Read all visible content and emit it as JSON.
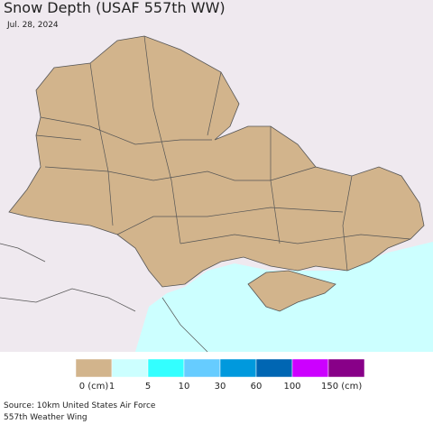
{
  "header": {
    "title": "Snow Depth (USAF 557th WW)",
    "date": "Jul. 28, 2024"
  },
  "legend": {
    "colors": [
      "#d2b48c",
      "#ccffff",
      "#33ffff",
      "#66ccff",
      "#0099dd",
      "#0066b3",
      "#cc00ff",
      "#880088"
    ],
    "labels": [
      "0 (cm)",
      "1",
      "5",
      "10",
      "30",
      "60",
      "100",
      "150 (cm)"
    ]
  },
  "footer": {
    "source": [
      "Source: 10km United States Air Force",
      "557th Weather Wing"
    ]
  }
}
